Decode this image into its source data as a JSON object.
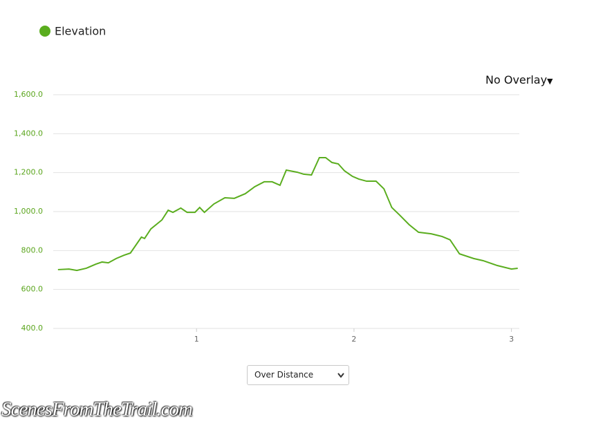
{
  "chart_data": {
    "type": "line",
    "series": [
      {
        "name": "Elevation",
        "color": "#5aad1e",
        "x": [
          0.12,
          0.19,
          0.24,
          0.3,
          0.36,
          0.4,
          0.44,
          0.49,
          0.54,
          0.58,
          0.65,
          0.67,
          0.71,
          0.78,
          0.82,
          0.85,
          0.9,
          0.94,
          0.99,
          1.02,
          1.05,
          1.11,
          1.18,
          1.24,
          1.31,
          1.37,
          1.43,
          1.48,
          1.53,
          1.57,
          1.64,
          1.68,
          1.73,
          1.78,
          1.82,
          1.86,
          1.9,
          1.94,
          1.99,
          2.03,
          2.08,
          2.14,
          2.19,
          2.24,
          2.29,
          2.35,
          2.41,
          2.49,
          2.56,
          2.61,
          2.67,
          2.76,
          2.82,
          2.91,
          3.0,
          3.04
        ],
        "values": [
          702,
          705,
          698,
          709,
          730,
          741,
          737,
          759,
          776,
          787,
          869,
          862,
          911,
          957,
          1007,
          996,
          1018,
          996,
          996,
          1021,
          996,
          1039,
          1071,
          1068,
          1092,
          1128,
          1153,
          1153,
          1135,
          1213,
          1202,
          1192,
          1188,
          1277,
          1277,
          1252,
          1245,
          1209,
          1181,
          1167,
          1156,
          1156,
          1117,
          1021,
          982,
          933,
          894,
          886,
          872,
          855,
          783,
          759,
          748,
          723,
          705,
          709
        ]
      }
    ],
    "xlim": [
      0.09,
      3.05
    ],
    "xticks": [
      1,
      2,
      3
    ],
    "ylim": [
      400,
      1600
    ],
    "yticks": [
      {
        "value": 400,
        "label": "400.0"
      },
      {
        "value": 600,
        "label": "600.0"
      },
      {
        "value": 800,
        "label": "800.0"
      },
      {
        "value": 1000,
        "label": "1,000.0"
      },
      {
        "value": 1200,
        "label": "1,200.0"
      },
      {
        "value": 1400,
        "label": "1,400.0"
      },
      {
        "value": 1600,
        "label": "1,600.0"
      }
    ],
    "grid": true,
    "overlay_menu": "No Overlay",
    "x_mode_select": "Over Distance",
    "watermark": "ScenesFromTheTrail.com"
  }
}
